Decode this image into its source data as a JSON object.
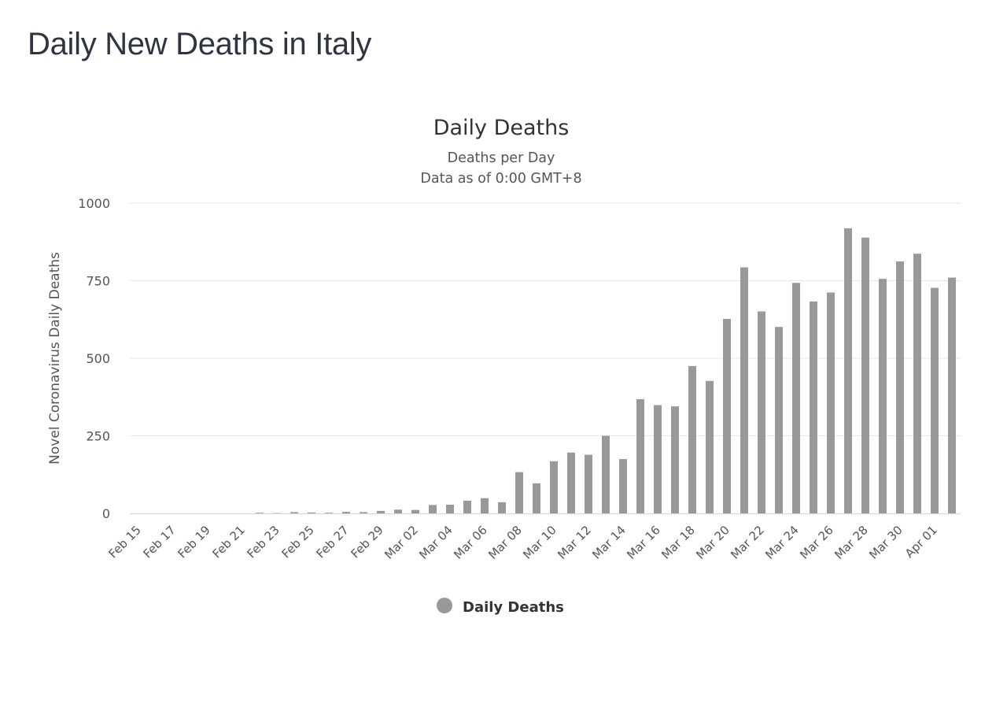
{
  "page": {
    "title": "Daily New Deaths in Italy"
  },
  "colors": {
    "bar": "#999999",
    "grid": "#e6e6e6",
    "axis": "#ccd6eb"
  },
  "chart_data": {
    "type": "bar",
    "title": "Daily Deaths",
    "subtitle": [
      "Deaths per Day",
      "Data as of 0:00 GMT+8"
    ],
    "ylabel": "Novel Coronavirus Daily Deaths",
    "xlabel": "",
    "ylim": [
      0,
      1000
    ],
    "yticks": [
      0,
      250,
      500,
      750,
      1000
    ],
    "grid": true,
    "legend": {
      "position": "bottom-center"
    },
    "tick_labels": [
      "Feb 15",
      "Feb 17",
      "Feb 19",
      "Feb 21",
      "Feb 23",
      "Feb 25",
      "Feb 27",
      "Feb 29",
      "Mar 02",
      "Mar 04",
      "Mar 06",
      "Mar 08",
      "Mar 10",
      "Mar 12",
      "Mar 14",
      "Mar 16",
      "Mar 18",
      "Mar 20",
      "Mar 22",
      "Mar 24",
      "Mar 26",
      "Mar 28",
      "Mar 30",
      "Apr 01"
    ],
    "categories": [
      "Feb 15",
      "Feb 16",
      "Feb 17",
      "Feb 18",
      "Feb 19",
      "Feb 20",
      "Feb 21",
      "Feb 22",
      "Feb 23",
      "Feb 24",
      "Feb 25",
      "Feb 26",
      "Feb 27",
      "Feb 28",
      "Feb 29",
      "Mar 01",
      "Mar 02",
      "Mar 03",
      "Mar 04",
      "Mar 05",
      "Mar 06",
      "Mar 07",
      "Mar 08",
      "Mar 09",
      "Mar 10",
      "Mar 11",
      "Mar 12",
      "Mar 13",
      "Mar 14",
      "Mar 15",
      "Mar 16",
      "Mar 17",
      "Mar 18",
      "Mar 19",
      "Mar 20",
      "Mar 21",
      "Mar 22",
      "Mar 23",
      "Mar 24",
      "Mar 25",
      "Mar 26",
      "Mar 27",
      "Mar 28",
      "Mar 29",
      "Mar 30",
      "Mar 31",
      "Apr 01",
      "Apr 02"
    ],
    "series": [
      {
        "name": "Daily Deaths",
        "values": [
          0,
          0,
          0,
          0,
          0,
          0,
          0,
          2,
          1,
          4,
          3,
          2,
          5,
          4,
          8,
          12,
          11,
          27,
          28,
          41,
          49,
          36,
          133,
          97,
          168,
          196,
          189,
          250,
          175,
          368,
          349,
          345,
          475,
          427,
          627,
          793,
          651,
          601,
          743,
          683,
          712,
          919,
          889,
          756,
          812,
          837,
          727,
          760
        ]
      }
    ]
  }
}
